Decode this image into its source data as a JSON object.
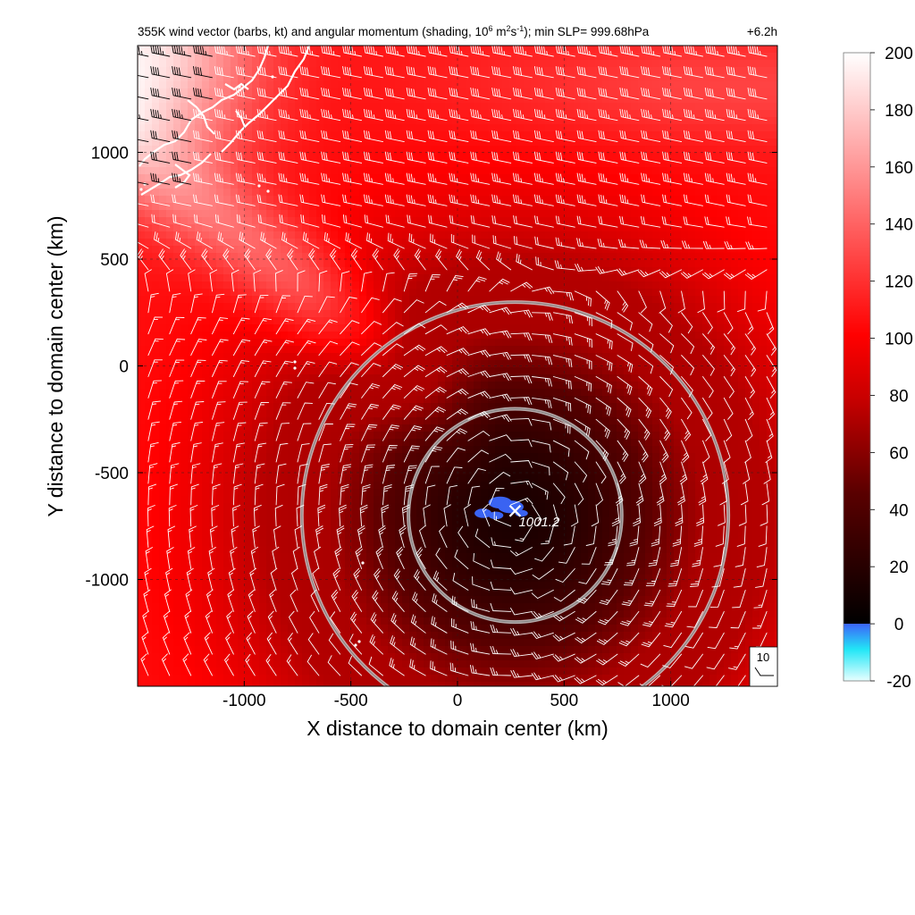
{
  "chart_data": {
    "type": "heatmap",
    "title": "355K wind vector (barbs, kt) and angular momentum (shading, 10",
    "title_parts": {
      "prefix": "355K wind vector (barbs, kt) and angular momentum (shading, 10",
      "sup1": "6",
      "mid": " m",
      "sup2": "2",
      "mid2": "s",
      "sup3": "-1",
      "suffix": "); min SLP= 999.68hPa"
    },
    "time_label": "+6.2h",
    "xlabel": "X distance to domain center (km)",
    "ylabel": "Y distance to domain center (km)",
    "xlim": [
      -1500,
      1500
    ],
    "ylim": [
      -1500,
      1500
    ],
    "x_ticks": [
      -1000,
      -500,
      0,
      500,
      1000
    ],
    "x_tick_labels": [
      "-1000",
      "-500",
      "0",
      "500",
      "1000"
    ],
    "y_ticks": [
      -1000,
      -500,
      0,
      500,
      1000
    ],
    "y_tick_labels": [
      "-1000",
      "-500",
      "0",
      "500",
      "1000"
    ],
    "grid": true,
    "colorbar": {
      "range": [
        -20,
        200
      ],
      "ticks": [
        -20,
        0,
        20,
        40,
        60,
        80,
        100,
        120,
        140,
        160,
        180,
        200
      ],
      "tick_labels": [
        "-20",
        "0",
        "20",
        "40",
        "60",
        "80",
        "100",
        "120",
        "140",
        "160",
        "180",
        "200"
      ],
      "colors": {
        "neg_low": "#e8ffff",
        "neg_mid": "#22e6f6",
        "zero_blue": "#3c64f8",
        "dark": "#000000",
        "mid_red": "#b40000",
        "red": "#ff0000",
        "white": "#ffffff"
      }
    },
    "storm_center": {
      "x": 270,
      "y": -700,
      "label": "1001.2"
    },
    "rings_km": [
      500,
      1000
    ],
    "barb_reference": {
      "label": "10",
      "speed_kt": 10
    },
    "field_summary": {
      "min_value": 0,
      "max_value": 200,
      "high_region": "north-west corner (coast)",
      "low_region": "storm center"
    },
    "colors": {
      "coastline": "#ffffff",
      "rings": "#c8c8c8",
      "barbs_dark_bg": "#ffffff",
      "barbs_light_bg": "#000000",
      "negative_patch": "#3a63f2"
    }
  }
}
